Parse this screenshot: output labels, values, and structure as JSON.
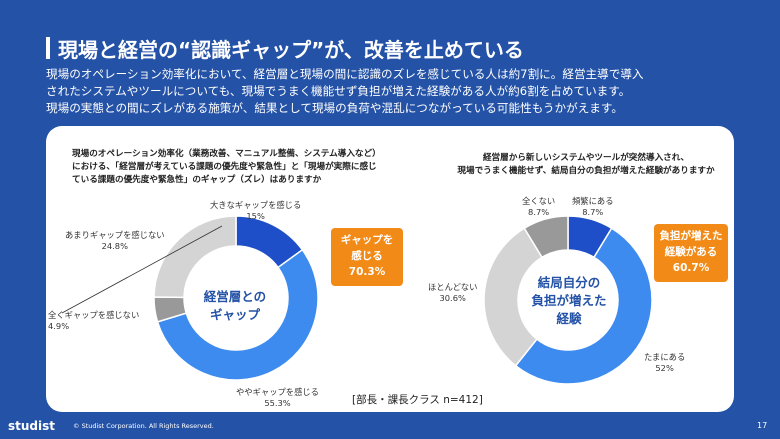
{
  "title": "現場と経営の“認識ギャップ”が、改善を止めている",
  "description": [
    "現場のオペレーション効率化において、経営層と現場の間に認識のズレを感じている人は約7割に。経営主導で導入",
    "されたシステムやツールについても、現場でうまく機能せず負担が増えた経験がある人が約6割を占めています。",
    "現場の実態との間にズレがある施策が、結果として現場の負荷や混乱につながっている可能性もうかがえます。"
  ],
  "chart_data": [
    {
      "type": "pie",
      "question": [
        "現場のオペレーション効率化（業務改善、マニュアル整備、システム導入など）",
        "における、「経営層が考えている課題の優先度や緊急性」と「現場が実際に感じ",
        "ている課題の優先度や緊急性」のギャップ（ズレ）はありますか"
      ],
      "center_label": [
        "経営層との",
        "ギャップ"
      ],
      "categories": [
        "大きなギャップを感じる",
        "ややギャップを感じる",
        "あまりギャップを感じない",
        "全くギャップを感じない"
      ],
      "values": [
        15,
        55.3,
        24.8,
        4.9
      ],
      "value_labels": [
        "15%",
        "55.3%",
        "24.8%",
        "4.9%"
      ],
      "colors": [
        "#1f4fc8",
        "#3d8bef",
        "#d4d4d4",
        "#999999"
      ],
      "callout": [
        "ギャップを",
        "感じる",
        "70.3%"
      ]
    },
    {
      "type": "pie",
      "question": [
        "経営層から新しいシステムやツールが突然導入され、",
        "現場でうまく機能せず、結局自分の負担が増えた経験がありますか"
      ],
      "center_label": [
        "結局自分の",
        "負担が増えた",
        "経験"
      ],
      "categories": [
        "頻繁にある",
        "たまにある",
        "ほとんどない",
        "全くない"
      ],
      "values": [
        8.7,
        52,
        30.6,
        8.7
      ],
      "value_labels": [
        "8.7%",
        "52%",
        "30.6%",
        "8.7%"
      ],
      "colors": [
        "#1f4fc8",
        "#3d8bef",
        "#d4d4d4",
        "#999999"
      ],
      "callout": [
        "負担が増えた",
        "経験がある",
        "60.7%"
      ]
    }
  ],
  "sample_note": "[部長・課長クラス n=412]",
  "footer": {
    "logo": "studist",
    "copyright": "© Studist Corporation. All Rights Reserved.",
    "page": "17"
  }
}
